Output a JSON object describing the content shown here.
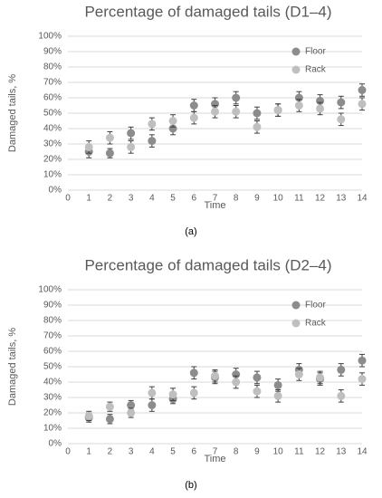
{
  "chart_data": [
    {
      "type": "scatter",
      "title": "Percentage of damaged tails (D1–4)",
      "caption": "(a)",
      "x_label": "Time",
      "y_label": "Damaged tails, %",
      "x": [
        1,
        2,
        3,
        4,
        5,
        6,
        7,
        8,
        9,
        10,
        11,
        12,
        13,
        14
      ],
      "series": [
        {
          "name": "Floor",
          "color": "#8c8c8c",
          "values": [
            25,
            24,
            37,
            32,
            40,
            55,
            56,
            60,
            50,
            52,
            60,
            58,
            57,
            65
          ],
          "errors": [
            4,
            3,
            4,
            4,
            4,
            4,
            4,
            4,
            4,
            4,
            4,
            4,
            4,
            4
          ]
        },
        {
          "name": "Rack",
          "color": "#bfbfbf",
          "values": [
            28,
            34,
            28,
            43,
            45,
            47,
            51,
            51,
            41,
            52,
            55,
            53,
            46,
            56
          ],
          "errors": [
            4,
            4,
            4,
            4,
            4,
            4,
            4,
            4,
            4,
            4,
            4,
            4,
            4,
            4
          ]
        }
      ],
      "xlim": [
        0,
        14
      ],
      "xticks": [
        0,
        1,
        2,
        3,
        4,
        5,
        6,
        7,
        8,
        9,
        10,
        11,
        12,
        13,
        14
      ],
      "ylim": [
        0,
        100
      ],
      "yticks": [
        {
          "value": 0,
          "label": "0%"
        },
        {
          "value": 10,
          "label": "10%"
        },
        {
          "value": 20,
          "label": "20%"
        },
        {
          "value": 30,
          "label": "30%"
        },
        {
          "value": 40,
          "label": "40%"
        },
        {
          "value": 50,
          "label": "50%"
        },
        {
          "value": 60,
          "label": "60%"
        },
        {
          "value": 70,
          "label": "70%"
        },
        {
          "value": 80,
          "label": "80%"
        },
        {
          "value": 90,
          "label": "90%"
        },
        {
          "value": 100,
          "label": "100%"
        }
      ],
      "grid": true,
      "legend": "upper right"
    },
    {
      "type": "scatter",
      "title": "Percentage of damaged tails (D2–4)",
      "caption": "(b)",
      "x_label": "Time",
      "y_label": "Damaged tails, %",
      "x": [
        1,
        2,
        3,
        4,
        5,
        6,
        7,
        8,
        9,
        10,
        11,
        12,
        13,
        14
      ],
      "series": [
        {
          "name": "Floor",
          "color": "#8c8c8c",
          "values": [
            17,
            16,
            25,
            25,
            29,
            46,
            43,
            45,
            43,
            38,
            48,
            42,
            48,
            54
          ],
          "errors": [
            3,
            3,
            3,
            4,
            3,
            4,
            4,
            4,
            4,
            4,
            4,
            4,
            4,
            4
          ]
        },
        {
          "name": "Rack",
          "color": "#bfbfbf",
          "values": [
            18,
            24,
            20,
            33,
            32,
            33,
            44,
            40,
            34,
            31,
            45,
            43,
            31,
            42
          ],
          "errors": [
            3,
            3,
            3,
            4,
            4,
            4,
            4,
            4,
            4,
            4,
            4,
            4,
            4,
            4
          ]
        }
      ],
      "xlim": [
        0,
        14
      ],
      "xticks": [
        0,
        1,
        2,
        3,
        4,
        5,
        6,
        7,
        8,
        9,
        10,
        11,
        12,
        13,
        14
      ],
      "ylim": [
        0,
        100
      ],
      "yticks": [
        {
          "value": 0,
          "label": "0%"
        },
        {
          "value": 10,
          "label": "10%"
        },
        {
          "value": 20,
          "label": "20%"
        },
        {
          "value": 30,
          "label": "30%"
        },
        {
          "value": 40,
          "label": "40%"
        },
        {
          "value": 50,
          "label": "50%"
        },
        {
          "value": 60,
          "label": "60%"
        },
        {
          "value": 70,
          "label": "70%"
        },
        {
          "value": 80,
          "label": "80%"
        },
        {
          "value": 90,
          "label": "90%"
        },
        {
          "value": 100,
          "label": "100%"
        }
      ],
      "grid": true,
      "legend": "upper right"
    }
  ]
}
